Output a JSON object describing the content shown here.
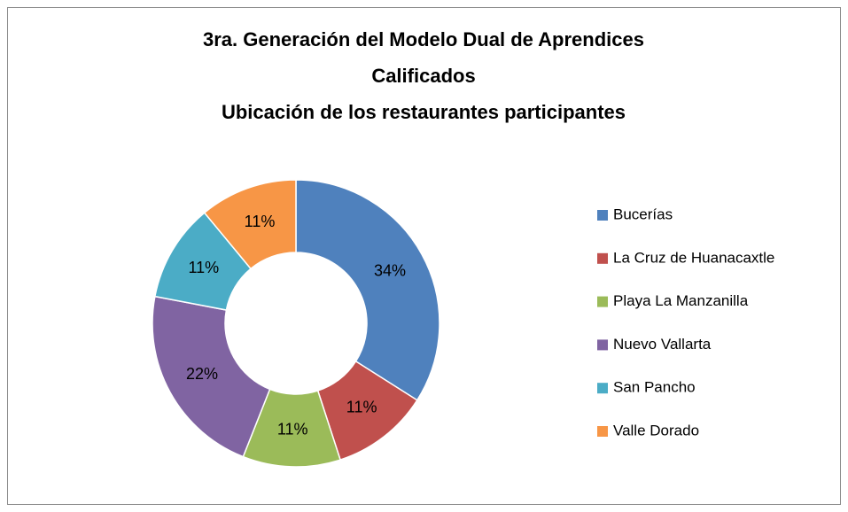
{
  "chart_data": {
    "type": "donut",
    "title": [
      "3ra. Generación  del Modelo Dual de  Aprendices",
      "Calificados",
      "Ubicación de los restaurantes participantes"
    ],
    "categories": [
      "Bucerías",
      "La Cruz de Huanacaxtle",
      "Playa La Manzanilla",
      "Nuevo Vallarta",
      "San Pancho",
      "Valle Dorado"
    ],
    "values": [
      34,
      11,
      11,
      22,
      11,
      11
    ],
    "value_labels": [
      "34%",
      "11%",
      "11%",
      "22%",
      "11%",
      "11%"
    ],
    "colors": [
      "#4f81bd",
      "#c0504d",
      "#9bbb59",
      "#8064a2",
      "#4bacc6",
      "#f79646"
    ],
    "legend": "right"
  }
}
